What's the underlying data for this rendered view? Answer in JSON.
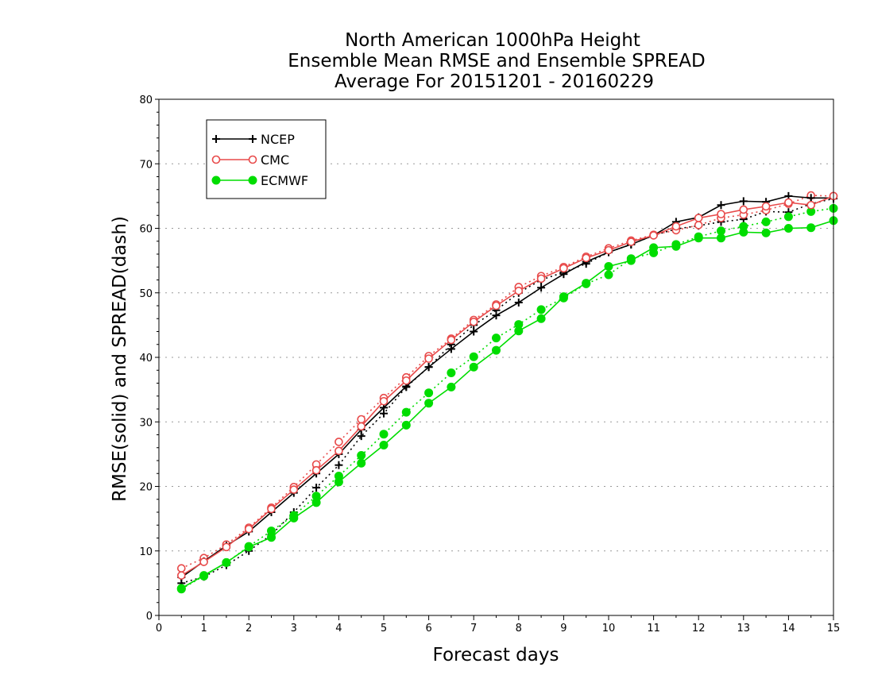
{
  "chart_data": {
    "type": "line",
    "title": [
      "North American 1000hPa Height",
      "Ensemble Mean RMSE and Ensemble SPREAD",
      "Average For 20151201 - 20160229"
    ],
    "xlabel": "Forecast days",
    "ylabel": "RMSE(solid) and SPREAD(dash)",
    "xlim": [
      0,
      15
    ],
    "ylim": [
      0,
      80
    ],
    "xticks": [
      "0",
      "1",
      "2",
      "3",
      "4",
      "5",
      "6",
      "7",
      "8",
      "9",
      "10",
      "11",
      "12",
      "13",
      "14",
      "15"
    ],
    "yticks": [
      "0",
      "10",
      "20",
      "30",
      "40",
      "50",
      "60",
      "70",
      "80"
    ],
    "grid": "horizontal dotted",
    "legend_position": "top-left",
    "x": [
      0.5,
      1,
      1.5,
      2,
      2.5,
      3,
      3.5,
      4,
      4.5,
      5,
      5.5,
      6,
      6.5,
      7,
      7.5,
      8,
      8.5,
      9,
      9.5,
      10,
      10.5,
      11,
      11.5,
      12,
      12.5,
      13,
      13.5,
      14,
      14.5,
      15
    ],
    "series": [
      {
        "name": "NCEP",
        "color": "#000000",
        "marker": "plus",
        "rmse": [
          5.9,
          8.4,
          10.8,
          13.0,
          16.0,
          19.0,
          22.0,
          25.0,
          28.8,
          32.2,
          35.5,
          38.5,
          41.3,
          44.0,
          46.5,
          48.5,
          50.8,
          52.9,
          54.8,
          56.3,
          57.5,
          58.9,
          61.0,
          61.7,
          63.6,
          64.2,
          64.1,
          65.0,
          64.7,
          64.7
        ],
        "spread": [
          5.0,
          6.0,
          7.8,
          10.0,
          12.5,
          16.0,
          19.8,
          23.3,
          27.8,
          31.3,
          35.4,
          38.5,
          42.0,
          45.0,
          47.3,
          50.0,
          52.0,
          53.2,
          54.5,
          56.3,
          57.5,
          58.9,
          59.9,
          60.4,
          61.0,
          61.4,
          62.6,
          62.5,
          63.8,
          64.6
        ]
      },
      {
        "name": "CMC",
        "color": "#e84a4a",
        "marker": "open-circle",
        "rmse": [
          6.2,
          8.3,
          10.6,
          13.4,
          16.5,
          19.5,
          22.5,
          25.5,
          29.3,
          33.2,
          36.4,
          39.8,
          42.7,
          45.5,
          48.0,
          50.3,
          52.2,
          53.8,
          55.4,
          56.6,
          57.9,
          58.9,
          60.3,
          61.6,
          62.2,
          62.9,
          63.4,
          64.0,
          63.6,
          65.0
        ],
        "spread": [
          7.3,
          8.9,
          11.0,
          13.6,
          16.7,
          19.9,
          23.4,
          26.9,
          30.4,
          33.7,
          36.9,
          40.2,
          42.9,
          45.8,
          48.2,
          50.9,
          52.6,
          54.0,
          55.6,
          56.9,
          58.1,
          59.0,
          59.7,
          60.5,
          61.6,
          62.1,
          62.8,
          63.8,
          65.1,
          65.0
        ]
      },
      {
        "name": "ECMWF",
        "color": "#00dd00",
        "marker": "filled-circle",
        "rmse": [
          4.2,
          6.2,
          8.2,
          10.6,
          12.1,
          15.1,
          17.5,
          20.7,
          23.6,
          26.4,
          29.5,
          32.9,
          35.4,
          38.5,
          41.1,
          44.1,
          46.0,
          49.4,
          51.5,
          54.1,
          55.0,
          57.0,
          57.2,
          58.5,
          58.5,
          59.4,
          59.3,
          60.0,
          60.1,
          61.2
        ],
        "spread": [
          4.1,
          6.1,
          8.2,
          10.7,
          13.1,
          15.5,
          18.5,
          21.6,
          24.8,
          28.1,
          31.5,
          34.5,
          37.6,
          40.1,
          43.0,
          45.1,
          47.4,
          49.2,
          51.4,
          52.8,
          55.3,
          56.2,
          57.5,
          58.7,
          59.6,
          60.3,
          61.0,
          61.8,
          62.6,
          63.1
        ]
      }
    ]
  }
}
